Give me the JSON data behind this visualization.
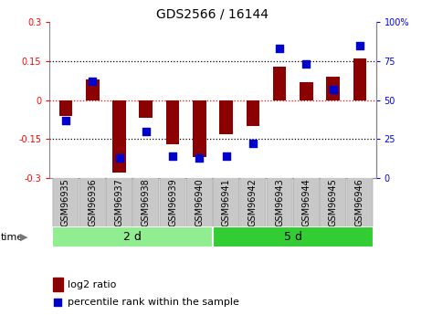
{
  "title": "GDS2566 / 16144",
  "samples": [
    "GSM96935",
    "GSM96936",
    "GSM96937",
    "GSM96938",
    "GSM96939",
    "GSM96940",
    "GSM96941",
    "GSM96942",
    "GSM96943",
    "GSM96944",
    "GSM96945",
    "GSM96946"
  ],
  "log2_ratio": [
    -0.06,
    0.08,
    -0.28,
    -0.07,
    -0.17,
    -0.22,
    -0.13,
    -0.1,
    0.13,
    0.07,
    0.09,
    0.16
  ],
  "percentile_rank": [
    37,
    62,
    13,
    30,
    14,
    13,
    14,
    22,
    83,
    73,
    57,
    85
  ],
  "group1_indices": [
    0,
    1,
    2,
    3,
    4,
    5
  ],
  "group2_indices": [
    6,
    7,
    8,
    9,
    10,
    11
  ],
  "group1_label": "2 d",
  "group2_label": "5 d",
  "group1_color": "#90EE90",
  "group2_color": "#32CD32",
  "ylim_left": [
    -0.3,
    0.3
  ],
  "ylim_right": [
    0,
    100
  ],
  "yticks_left": [
    -0.3,
    -0.15,
    0,
    0.15,
    0.3
  ],
  "ytick_labels_left": [
    "-0.3",
    "-0.15",
    "0",
    "0.15",
    "0.3"
  ],
  "yticks_right": [
    0,
    25,
    50,
    75,
    100
  ],
  "ytick_labels_right": [
    "0",
    "25",
    "50",
    "75",
    "100%"
  ],
  "hline_zero_color": "red",
  "hline_ref_color": "black",
  "bar_color": "#8B0000",
  "dot_color": "#0000CC",
  "bar_width": 0.5,
  "dot_size": 40,
  "legend_bar_label": "log2 ratio",
  "legend_dot_label": "percentile rank within the sample",
  "time_label": "time",
  "title_fontsize": 10,
  "tick_fontsize": 7,
  "label_fontsize": 8,
  "group_fontsize": 9,
  "gray_box_color": "#C8C8C8",
  "gray_box_edge": "#AAAAAA"
}
